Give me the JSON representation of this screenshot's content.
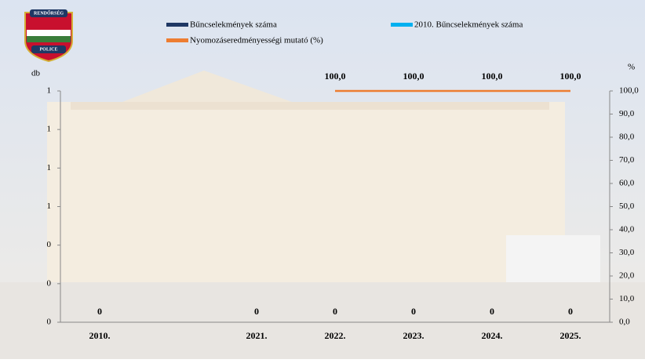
{
  "logo": {
    "top": "RENDŐRSÉG",
    "bottom": "POLICE"
  },
  "chart_data": {
    "type": "bar",
    "y_label": "db",
    "y2_label": "%",
    "categories": [
      "2010.",
      null,
      "2021.",
      "2022.",
      "2023.",
      "2024.",
      "2025."
    ],
    "ylim": [
      0,
      1.2
    ],
    "yticks": [
      {
        "value": 0,
        "label": "0"
      },
      {
        "value": 0.2,
        "label": "0"
      },
      {
        "value": 0.4,
        "label": "0"
      },
      {
        "value": 0.6,
        "label": "1"
      },
      {
        "value": 0.8,
        "label": "1"
      },
      {
        "value": 1.0,
        "label": "1"
      },
      {
        "value": 1.2,
        "label": "1"
      }
    ],
    "y2lim": [
      0,
      100
    ],
    "y2ticks": [
      {
        "value": 0,
        "label": "0,0"
      },
      {
        "value": 10,
        "label": "10,0"
      },
      {
        "value": 20,
        "label": "20,0"
      },
      {
        "value": 30,
        "label": "30,0"
      },
      {
        "value": 40,
        "label": "40,0"
      },
      {
        "value": 50,
        "label": "50,0"
      },
      {
        "value": 60,
        "label": "60,0"
      },
      {
        "value": 70,
        "label": "70,0"
      },
      {
        "value": 80,
        "label": "80,0"
      },
      {
        "value": 90,
        "label": "90,0"
      },
      {
        "value": 100,
        "label": "100,0"
      }
    ],
    "series": [
      {
        "name": "Bűncselekmények száma",
        "type": "bar",
        "color": "#1f3864",
        "values": [
          0,
          null,
          0,
          0,
          0,
          0,
          0
        ]
      },
      {
        "name": "2010. Bűncselekmények száma",
        "type": "line",
        "color": "#00b0f0",
        "values": [
          0,
          null,
          null,
          null,
          null,
          null,
          null
        ]
      },
      {
        "name": "Nyomozáseredményességi mutató (%)",
        "type": "line",
        "axis": "y2",
        "color": "#ed7d31",
        "values": [
          null,
          null,
          null,
          100,
          100,
          100,
          100
        ],
        "value_labels": [
          null,
          null,
          null,
          "100,0",
          "100,0",
          "100,0",
          "100,0"
        ]
      }
    ]
  }
}
